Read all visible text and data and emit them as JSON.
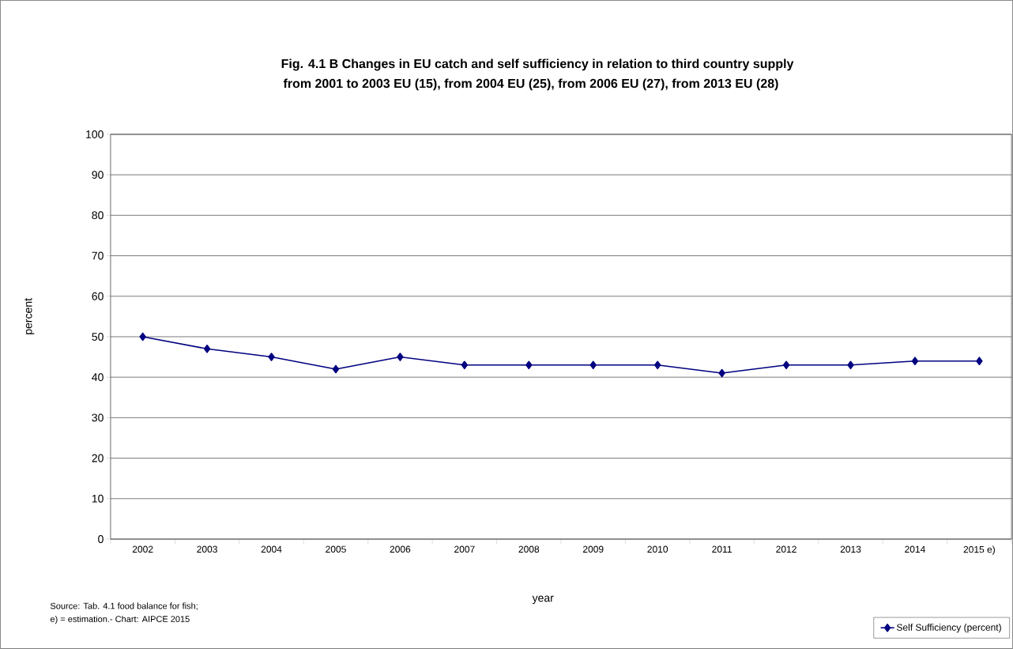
{
  "chart_data": {
    "type": "line",
    "title": "Fig. 4.1 B  Changes in EU catch and self sufficiency in relation to third country supply",
    "subtitle": "from 2001 to 2003 EU (15), from 2004 EU (25), from 2006 EU (27), from 2013 EU (28)",
    "xlabel": "year",
    "ylabel": "percent",
    "categories": [
      "2002",
      "2003",
      "2004",
      "2005",
      "2006",
      "2007",
      "2008",
      "2009",
      "2010",
      "2011",
      "2012",
      "2013",
      "2014",
      "2015 e)"
    ],
    "series": [
      {
        "name": "Self Sufficiency (percent)",
        "color": "#000080",
        "values": [
          50,
          47,
          45,
          42,
          45,
          43,
          43,
          43,
          43,
          41,
          43,
          43,
          44,
          44
        ]
      }
    ],
    "ylim": [
      0,
      100
    ],
    "yticks": [
      0,
      10,
      20,
      30,
      40,
      50,
      60,
      70,
      80,
      90,
      100
    ],
    "grid": "y",
    "legend": "bottom right",
    "marker": "diamond",
    "line_style": "solid",
    "annotations": [
      "Source: Tab. 4.1 food balance for fish;",
      "e) = estimation.- Chart: AIPCE 2015"
    ]
  }
}
